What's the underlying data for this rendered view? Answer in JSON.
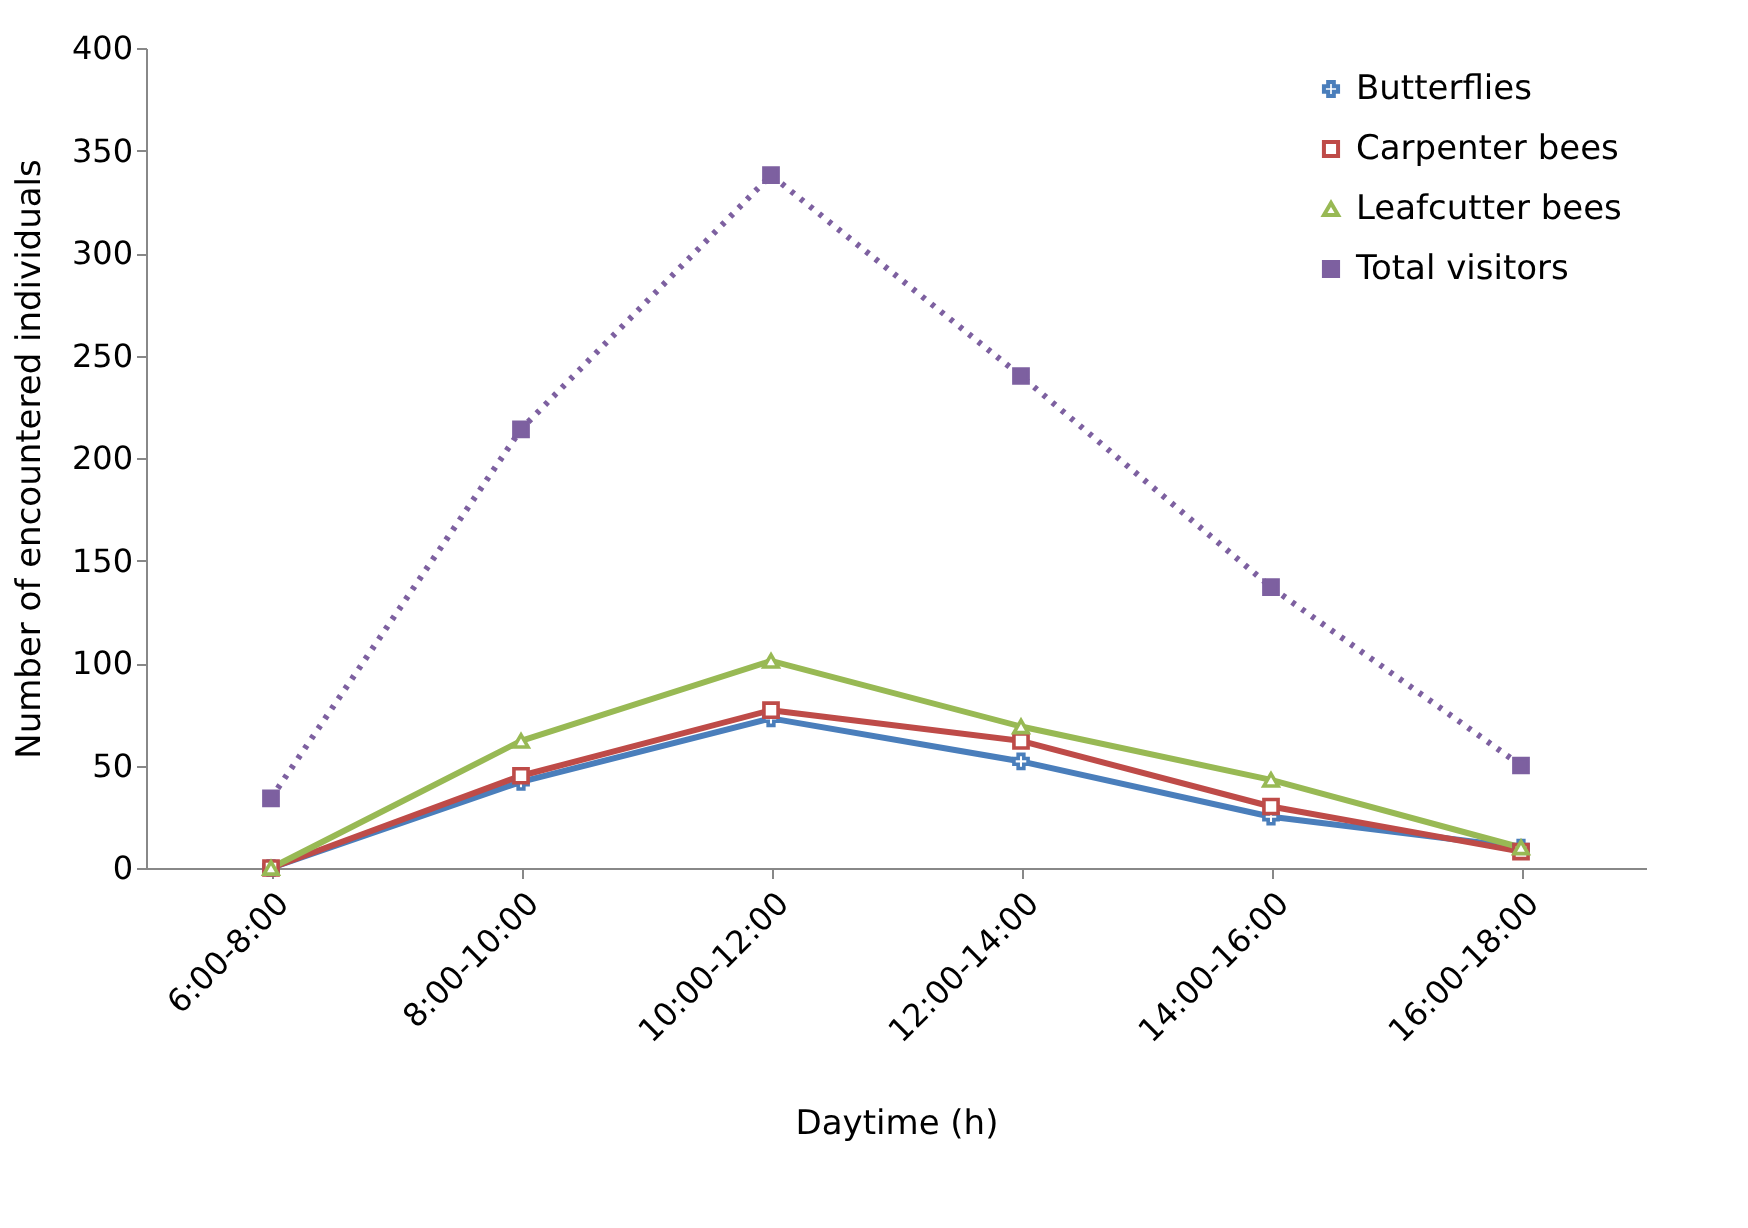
{
  "chart_data": {
    "type": "line",
    "xlabel": "Daytime (h)",
    "ylabel": "Number of encountered individuals",
    "categories": [
      "6:00-8:00",
      "8:00-10:00",
      "10:00-12:00",
      "12:00-14:00",
      "14:00-16:00",
      "16:00-18:00"
    ],
    "series": [
      {
        "name": "Butterflies",
        "color": "#4a7ebb",
        "marker": "cross",
        "line_style": "solid",
        "values": [
          0,
          42,
          73,
          52,
          25,
          10
        ]
      },
      {
        "name": "Carpenter bees",
        "color": "#be4b48",
        "marker": "square",
        "line_style": "solid",
        "values": [
          0,
          45,
          77,
          62,
          30,
          8
        ]
      },
      {
        "name": "Leafcutter bees",
        "color": "#98b954",
        "marker": "triangle",
        "line_style": "solid",
        "values": [
          0,
          62,
          101,
          69,
          43,
          10
        ]
      },
      {
        "name": "Total visitors",
        "color": "#7d60a0",
        "marker": "square",
        "line_style": "dotted",
        "values": [
          34,
          214,
          338,
          240,
          137,
          50
        ]
      }
    ],
    "ylim": [
      0,
      400
    ],
    "yticks": [
      0,
      50,
      100,
      150,
      200,
      250,
      300,
      350,
      400
    ],
    "grid": false,
    "legend": "top right"
  }
}
